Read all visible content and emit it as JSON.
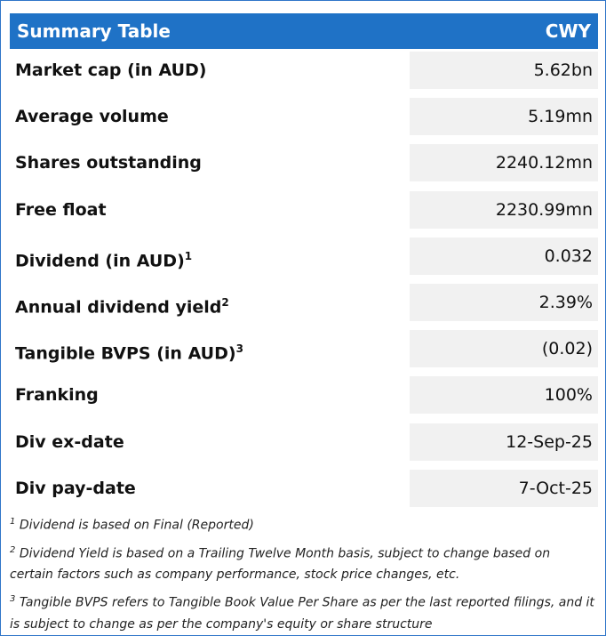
{
  "table": {
    "header": [
      "Summary Table",
      "CWY"
    ],
    "rows": [
      {
        "label": "Market cap (in AUD)",
        "value": "5.62bn"
      },
      {
        "label": "Average volume",
        "value": "5.19mn"
      },
      {
        "label": "Shares outstanding",
        "value": "2240.12mn"
      },
      {
        "label": "Free float",
        "value": "2230.99mn"
      },
      {
        "label": "Dividend (in AUD)",
        "note": "1",
        "value": "0.032"
      },
      {
        "label": "Annual dividend yield",
        "note": "2",
        "value": "2.39%"
      },
      {
        "label": "Tangible BVPS (in AUD)",
        "note": "3",
        "value": "(0.02)"
      },
      {
        "label": "Franking",
        "value": "100%"
      },
      {
        "label": "Div ex-date",
        "value": "12-Sep-25"
      },
      {
        "label": "Div pay-date",
        "value": "7-Oct-25"
      }
    ]
  },
  "footnotes": [
    {
      "marker": "1",
      "text": "Dividend is based on Final (Reported)"
    },
    {
      "marker": "2",
      "text": "Dividend Yield is based on a Trailing Twelve Month basis, subject to change based on certain factors such as company performance, stock price changes, etc."
    },
    {
      "marker": "3",
      "text": "Tangible BVPS refers to Tangible Book Value Per Share as per the last reported filings, and it is subject to change as per the company's equity or share structure"
    }
  ]
}
